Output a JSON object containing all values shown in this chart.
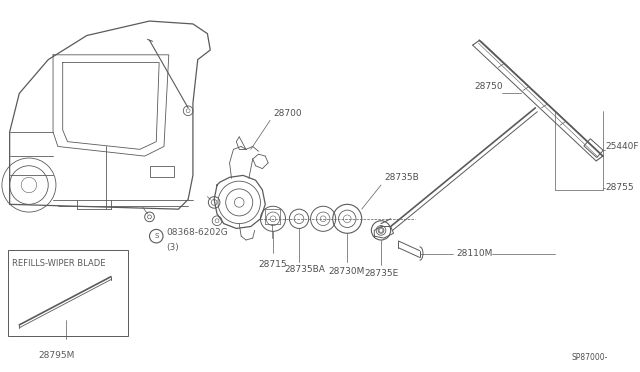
{
  "bg_color": "#ffffff",
  "line_color": "#5a5a5a",
  "diagram_code": "SP87000-",
  "refill_label": "REFILLS-WIPER BLADE",
  "screw_label": "08368-6202G",
  "screw_count": "(3)"
}
